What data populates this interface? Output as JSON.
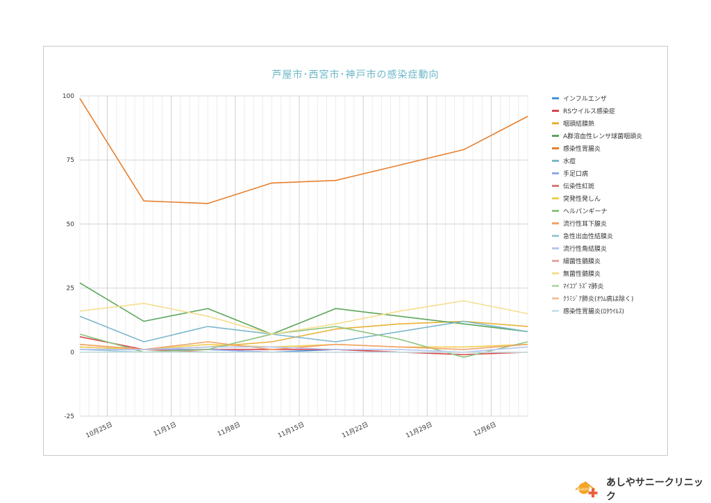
{
  "chart_data": {
    "type": "line",
    "title": "芦屋市･西宮市･神戸市の感染症動向",
    "y_ticks": [
      "100",
      "75",
      "50",
      "25",
      "0",
      "-25"
    ],
    "ylim": [
      -25,
      100
    ],
    "x_tick_labels": [
      "10月25日",
      "11月1日",
      "11月8日",
      "11月15日",
      "11月22日",
      "11月29日",
      "12月6日"
    ],
    "x": [
      "10月22日",
      "10月29日",
      "11月5日",
      "11月12日",
      "11月19日",
      "11月26日",
      "12月3日",
      "12月10日"
    ],
    "legend_position": "right",
    "grid": true,
    "series": [
      {
        "name": "インフルエンザ",
        "color": "#4a90d9",
        "values": [
          1,
          1,
          1,
          0,
          1,
          0,
          0,
          0
        ]
      },
      {
        "name": "RSウイルス感染症",
        "color": "#d9434b",
        "values": [
          6,
          1,
          1,
          1,
          1,
          0,
          -1,
          0
        ]
      },
      {
        "name": "咽頭結膜熱",
        "color": "#e9b133",
        "values": [
          3,
          1,
          2,
          4,
          9,
          11,
          12,
          10
        ]
      },
      {
        "name": "A群溶血性レンサ球菌咽頭炎",
        "color": "#5aa65a",
        "values": [
          27,
          12,
          17,
          7,
          17,
          14,
          11,
          8
        ]
      },
      {
        "name": "感染性胃腸炎",
        "color": "#e77e2c",
        "values": [
          99,
          59,
          58,
          66,
          67,
          73,
          79,
          92
        ]
      },
      {
        "name": "水痘",
        "color": "#7cb7cc",
        "values": [
          14,
          4,
          10,
          7,
          4,
          8,
          12,
          8
        ]
      },
      {
        "name": "手足口病",
        "color": "#8fa8e6",
        "values": [
          1,
          1,
          1,
          0,
          0,
          0,
          0,
          0
        ]
      },
      {
        "name": "伝染性紅斑",
        "color": "#d47c74",
        "values": [
          2,
          1,
          0,
          0,
          0,
          0,
          0,
          0
        ]
      },
      {
        "name": "突発性発しん",
        "color": "#f1cf52",
        "values": [
          2,
          1,
          3,
          2,
          3,
          2,
          2,
          3
        ]
      },
      {
        "name": "ヘルパンギーナ",
        "color": "#8cc47c",
        "values": [
          7,
          0,
          1,
          7,
          10,
          5,
          -2,
          4
        ]
      },
      {
        "name": "流行性耳下腺炎",
        "color": "#f0a36a",
        "values": [
          3,
          1,
          4,
          1,
          3,
          2,
          1,
          3
        ]
      },
      {
        "name": "急性出血性結膜炎",
        "color": "#9cc8d6",
        "values": [
          1,
          0,
          0,
          0,
          0,
          0,
          0,
          0
        ]
      },
      {
        "name": "流行性角結膜炎",
        "color": "#b7c6f0",
        "values": [
          1,
          1,
          2,
          2,
          1,
          1,
          0,
          2
        ]
      },
      {
        "name": "細菌性髄膜炎",
        "color": "#e6a6a0",
        "values": [
          0,
          0,
          0,
          0,
          0,
          0,
          0,
          0
        ]
      },
      {
        "name": "無菌性髄膜炎",
        "color": "#f5de8e",
        "values": [
          16,
          19,
          14,
          7,
          11,
          16,
          20,
          15
        ]
      },
      {
        "name": "ﾏｲｺﾌﾟﾗｽﾞﾏ肺炎",
        "color": "#b1dba6",
        "values": [
          0,
          0,
          0,
          0,
          0,
          0,
          0,
          0
        ]
      },
      {
        "name": "ｸﾗﾐｼﾞｱ肺炎(ｵｳﾑ病は除く)",
        "color": "#f5c3a0",
        "values": [
          0,
          0,
          0,
          0,
          0,
          0,
          0,
          0
        ]
      },
      {
        "name": "感染性胃腸炎(ﾛﾀｳｲﾙｽ)",
        "color": "#c7e3ea",
        "values": [
          0,
          0,
          0,
          0,
          0,
          0,
          0,
          0
        ]
      }
    ]
  },
  "logo": {
    "badge": "Sunny",
    "text": "あしやサニークリニック"
  }
}
